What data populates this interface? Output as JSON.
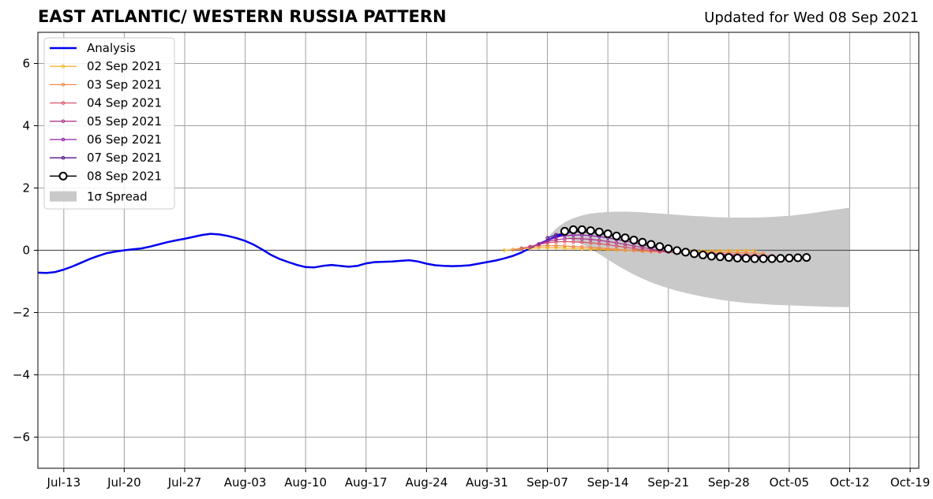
{
  "chart_data": {
    "type": "line",
    "title": "EAST ATLANTIC/ WESTERN RUSSIA PATTERN",
    "subtitle": "Updated for Wed 08 Sep 2021",
    "xlabel": "",
    "ylabel": "",
    "ylim": [
      -7,
      7
    ],
    "xlim": [
      "2021-07-10",
      "2021-10-20"
    ],
    "yticks": [
      -6,
      -4,
      -2,
      0,
      2,
      4,
      6
    ],
    "ytick_labels": [
      "−6",
      "−4",
      "−2",
      "0",
      "2",
      "4",
      "6"
    ],
    "xticks": [
      "2021-07-13",
      "2021-07-20",
      "2021-07-27",
      "2021-08-03",
      "2021-08-10",
      "2021-08-17",
      "2021-08-24",
      "2021-08-31",
      "2021-09-07",
      "2021-09-14",
      "2021-09-21",
      "2021-09-28",
      "2021-10-05",
      "2021-10-12",
      "2021-10-19"
    ],
    "xtick_labels": [
      "Jul-13",
      "Jul-20",
      "Jul-27",
      "Aug-03",
      "Aug-10",
      "Aug-17",
      "Aug-24",
      "Aug-31",
      "Sep-07",
      "Sep-14",
      "Sep-21",
      "Sep-28",
      "Oct-05",
      "Oct-12",
      "Oct-19"
    ],
    "grid": true,
    "legend_position": "top-left",
    "analysis": {
      "name": "Analysis",
      "color": "#0000ee",
      "start": "2021-07-10",
      "values": [
        -0.72,
        -0.73,
        -0.7,
        -0.62,
        -0.52,
        -0.4,
        -0.28,
        -0.18,
        -0.09,
        -0.04,
        0.0,
        0.03,
        0.06,
        0.12,
        0.19,
        0.26,
        0.32,
        0.37,
        0.43,
        0.49,
        0.53,
        0.51,
        0.46,
        0.39,
        0.3,
        0.18,
        0.02,
        -0.15,
        -0.28,
        -0.38,
        -0.47,
        -0.54,
        -0.55,
        -0.5,
        -0.47,
        -0.5,
        -0.53,
        -0.5,
        -0.42,
        -0.38,
        -0.37,
        -0.36,
        -0.34,
        -0.32,
        -0.36,
        -0.43,
        -0.48,
        -0.5,
        -0.51,
        -0.5,
        -0.48,
        -0.43,
        -0.38,
        -0.33,
        -0.26,
        -0.18,
        -0.07,
        0.07,
        0.2,
        0.32,
        0.44,
        0.54,
        0.62,
        0.68
      ]
    },
    "forecasts": [
      {
        "name": "02 Sep 2021",
        "color": "#f5b82e",
        "start": "2021-09-02",
        "values": [
          0.0,
          0.02,
          0.05,
          0.06,
          0.08,
          0.08,
          0.08,
          0.07,
          0.06,
          0.05,
          0.04,
          0.03,
          0.02,
          0.01,
          0.0,
          -0.01,
          -0.02,
          -0.02,
          -0.03,
          -0.03,
          -0.03,
          -0.02,
          -0.02,
          -0.02,
          -0.02,
          -0.01,
          -0.01,
          -0.01,
          -0.01,
          -0.01
        ]
      },
      {
        "name": "03 Sep 2021",
        "color": "#f08a4b",
        "start": "2021-09-03",
        "values": [
          0.02,
          0.07,
          0.11,
          0.14,
          0.15,
          0.15,
          0.14,
          0.12,
          0.11,
          0.09,
          0.07,
          0.05,
          0.03,
          0.01,
          -0.01,
          -0.03,
          -0.04,
          -0.05,
          -0.05,
          -0.06,
          -0.06,
          -0.06,
          -0.06,
          -0.06,
          -0.07,
          -0.07,
          -0.08,
          -0.08,
          -0.09,
          -0.1
        ]
      },
      {
        "name": "04 Sep 2021",
        "color": "#d9566b",
        "start": "2021-09-04",
        "values": [
          0.05,
          0.12,
          0.19,
          0.24,
          0.27,
          0.28,
          0.27,
          0.26,
          0.24,
          0.21,
          0.18,
          0.14,
          0.1,
          0.06,
          0.02,
          -0.01,
          -0.04,
          -0.06,
          -0.07,
          -0.08,
          -0.09,
          -0.1,
          -0.11,
          -0.12,
          -0.13,
          -0.14,
          -0.15,
          -0.16,
          -0.17,
          -0.18
        ]
      },
      {
        "name": "05 Sep 2021",
        "color": "#b03a8a",
        "start": "2021-09-05",
        "values": [
          0.1,
          0.2,
          0.28,
          0.34,
          0.37,
          0.38,
          0.37,
          0.35,
          0.32,
          0.28,
          0.24,
          0.19,
          0.14,
          0.09,
          0.04,
          -0.01,
          -0.05,
          -0.08,
          -0.1,
          -0.12,
          -0.14,
          -0.15,
          -0.16,
          -0.17,
          -0.18,
          -0.19,
          -0.2,
          -0.21,
          -0.22,
          -0.23
        ]
      },
      {
        "name": "06 Sep 2021",
        "color": "#8b1fa6",
        "start": "2021-09-06",
        "values": [
          0.2,
          0.32,
          0.41,
          0.47,
          0.49,
          0.49,
          0.47,
          0.44,
          0.4,
          0.35,
          0.3,
          0.24,
          0.18,
          0.12,
          0.07,
          0.02,
          -0.03,
          -0.07,
          -0.1,
          -0.13,
          -0.15,
          -0.17,
          -0.18,
          -0.19,
          -0.2,
          -0.21,
          -0.22,
          -0.23,
          -0.24,
          -0.25
        ]
      },
      {
        "name": "07 Sep 2021",
        "color": "#54118f",
        "start": "2021-09-07",
        "values": [
          0.4,
          0.5,
          0.56,
          0.59,
          0.59,
          0.57,
          0.54,
          0.49,
          0.43,
          0.37,
          0.3,
          0.23,
          0.16,
          0.1,
          0.05,
          0.0,
          -0.04,
          -0.08,
          -0.11,
          -0.13,
          -0.15,
          -0.17,
          -0.19,
          -0.2,
          -0.21,
          -0.22,
          -0.23,
          -0.24,
          -0.24,
          -0.25
        ]
      }
    ],
    "latest": {
      "name": "08 Sep 2021",
      "color": "#000000",
      "start": "2021-09-09",
      "values": [
        0.61,
        0.66,
        0.66,
        0.63,
        0.59,
        0.53,
        0.46,
        0.4,
        0.33,
        0.26,
        0.19,
        0.12,
        0.05,
        -0.01,
        -0.06,
        -0.11,
        -0.15,
        -0.19,
        -0.21,
        -0.23,
        -0.25,
        -0.26,
        -0.27,
        -0.27,
        -0.27,
        -0.26,
        -0.25,
        -0.24,
        -0.23
      ]
    },
    "spread": {
      "name": "1σ Spread",
      "color": "#c9c9c9",
      "start": "2021-09-07",
      "upper": [
        0.4,
        0.7,
        0.9,
        1.03,
        1.12,
        1.18,
        1.21,
        1.23,
        1.24,
        1.24,
        1.23,
        1.22,
        1.2,
        1.18,
        1.16,
        1.14,
        1.12,
        1.1,
        1.09,
        1.07,
        1.06,
        1.05,
        1.05,
        1.05,
        1.05,
        1.06,
        1.07,
        1.09,
        1.11,
        1.14,
        1.17,
        1.21,
        1.25,
        1.29,
        1.33,
        1.37
      ],
      "lower": [
        0.4,
        0.45,
        0.42,
        0.33,
        0.2,
        0.05,
        -0.12,
        -0.3,
        -0.47,
        -0.63,
        -0.78,
        -0.91,
        -1.03,
        -1.13,
        -1.22,
        -1.3,
        -1.37,
        -1.43,
        -1.49,
        -1.54,
        -1.59,
        -1.63,
        -1.66,
        -1.69,
        -1.71,
        -1.73,
        -1.75,
        -1.76,
        -1.77,
        -1.78,
        -1.79,
        -1.8,
        -1.81,
        -1.82,
        -1.82,
        -1.83
      ]
    }
  }
}
